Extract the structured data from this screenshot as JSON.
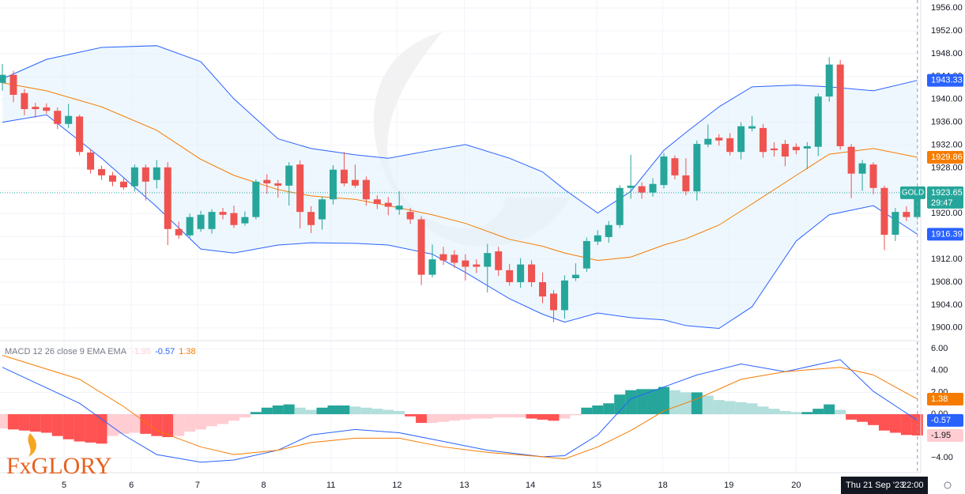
{
  "chart_data": [
    {
      "type": "candlestick",
      "symbol": "GOLD",
      "up_color": "#26a69a",
      "down_color": "#ef5350",
      "xlim": [
        -0.215,
        83.3
      ],
      "ylim": [
        1897.9,
        1957.4
      ],
      "xticks": [
        {
          "value": 5.6,
          "label": "5"
        },
        {
          "value": 11.7,
          "label": "6"
        },
        {
          "value": 17.7,
          "label": "7"
        },
        {
          "value": 23.7,
          "label": "8"
        },
        {
          "value": 29.8,
          "label": "11"
        },
        {
          "value": 35.8,
          "label": "12"
        },
        {
          "value": 41.9,
          "label": "13"
        },
        {
          "value": 47.9,
          "label": "14"
        },
        {
          "value": 53.9,
          "label": "15"
        },
        {
          "value": 59.9,
          "label": "18"
        },
        {
          "value": 65.9,
          "label": "19"
        },
        {
          "value": 72.0,
          "label": "20"
        }
      ],
      "yticks": [
        {
          "value": 1900,
          "label": "1900.00"
        },
        {
          "value": 1904,
          "label": "1904.00"
        },
        {
          "value": 1908,
          "label": "1908.00"
        },
        {
          "value": 1912,
          "label": "1912.00"
        },
        {
          "value": 1916,
          "label": "1916.00"
        },
        {
          "value": 1920,
          "label": "1920.00"
        },
        {
          "value": 1924,
          "label": "1924.00"
        },
        {
          "value": 1928,
          "label": "1928.00"
        },
        {
          "value": 1932,
          "label": "1932.00"
        },
        {
          "value": 1936,
          "label": "1936.00"
        },
        {
          "value": 1940,
          "label": "1940.00"
        },
        {
          "value": 1944,
          "label": "1944.00"
        },
        {
          "value": 1948,
          "label": "1948.00"
        },
        {
          "value": 1952,
          "label": "1952.00"
        },
        {
          "value": 1956,
          "label": "1956.00"
        }
      ],
      "open": [
        1942.9,
        1944.3,
        1941.1,
        1938.7,
        1938.6,
        1938.0,
        1935.7,
        1937,
        1930.7,
        1927.8,
        1926.7,
        1925.6,
        1924.8,
        1928.1,
        1925.9,
        1928.1,
        1917.3,
        1916.2,
        1917.3,
        1917.3,
        1920.3,
        1920.1,
        1918.3,
        1919.4,
        1925.9,
        1925.3,
        1924.9,
        1928.6,
        1920.3,
        1919,
        1922.5,
        1927.7,
        1925.9,
        1925.9,
        1922.5,
        1921.9,
        1920.7,
        1920.3,
        1919,
        1909.3,
        1912.9,
        1912.8,
        1911.8,
        1911.1,
        1910.7,
        1913.4,
        1910.1,
        1908,
        1911.1,
        1908,
        1906,
        1903.1,
        1908.7,
        1910.4,
        1915.1,
        1915.9,
        1918,
        1924.5,
        1924.8,
        1923.7,
        1925.0,
        1929.7,
        1926.7,
        1923.9,
        1932.1,
        1933.3,
        1933.2,
        1930.8,
        1934.9,
        1935,
        1931.4,
        1932.2,
        1931.7,
        1931.4,
        1931.7,
        1940.5,
        1946.1,
        1931.7,
        1927,
        1928.6,
        1924.5,
        1916.3,
        1920.3,
        1919.4
      ],
      "high": [
        1946.2,
        1945,
        1941.8,
        1939.4,
        1939.3,
        1938.6,
        1939.2,
        1937.3,
        1931.3,
        1928.4,
        1927.3,
        1926.2,
        1928.6,
        1928.6,
        1929.4,
        1929,
        1918.6,
        1920,
        1920.5,
        1920.8,
        1921,
        1921.4,
        1920.4,
        1926,
        1926.9,
        1925.9,
        1929,
        1929.3,
        1921.3,
        1923,
        1928.5,
        1930.8,
        1928.6,
        1926.5,
        1923.2,
        1922.9,
        1923.9,
        1921,
        1919.5,
        1914.6,
        1914.2,
        1913.6,
        1912.9,
        1912,
        1914.7,
        1914.2,
        1911.2,
        1912.2,
        1911.8,
        1909.7,
        1906.6,
        1909.2,
        1911.3,
        1915.8,
        1917.1,
        1918.7,
        1925,
        1930.3,
        1925.5,
        1926.2,
        1930.6,
        1930.2,
        1929.7,
        1932.8,
        1935.6,
        1933.9,
        1934.1,
        1936,
        1937.1,
        1935.7,
        1932.5,
        1932.9,
        1932.3,
        1932.5,
        1941,
        1947.4,
        1946.9,
        1932.2,
        1929.4,
        1929,
        1924.9,
        1921,
        1921.3,
        1923.9
      ],
      "low": [
        1941.5,
        1939.5,
        1937.2,
        1936.8,
        1937.5,
        1934.8,
        1935,
        1930.2,
        1927,
        1925.9,
        1924.8,
        1924.2,
        1923.9,
        1922.3,
        1924.4,
        1914.5,
        1915.6,
        1915.8,
        1916.8,
        1916.5,
        1919,
        1917.5,
        1917.9,
        1919,
        1923.5,
        1922.8,
        1921.4,
        1917.4,
        1916.6,
        1917.2,
        1921.6,
        1924.8,
        1924.5,
        1921.4,
        1920.8,
        1919.7,
        1919.8,
        1918.2,
        1907.5,
        1908.8,
        1911,
        1910.5,
        1908.3,
        1909.6,
        1906.2,
        1909.1,
        1907.4,
        1907,
        1907.2,
        1904.3,
        1901,
        1901.6,
        1908.2,
        1909.8,
        1914.5,
        1914.9,
        1917.5,
        1922.6,
        1922.6,
        1923,
        1924.4,
        1926,
        1923.2,
        1922.3,
        1931.6,
        1931.9,
        1930.2,
        1929.5,
        1934.4,
        1929.8,
        1930,
        1928.3,
        1930.4,
        1927.8,
        1930.1,
        1939.6,
        1931.2,
        1922.7,
        1924,
        1923.4,
        1913.6,
        1915.2,
        1918.7,
        1919
      ],
      "close": [
        1944.3,
        1940.8,
        1938.3,
        1938.3,
        1938.0,
        1935.7,
        1937.1,
        1930.8,
        1927.7,
        1926.7,
        1925.6,
        1924.6,
        1928.1,
        1925.6,
        1928.1,
        1917.3,
        1916.2,
        1919.4,
        1919.8,
        1920.3,
        1919.8,
        1918,
        1919.4,
        1925.6,
        1925.3,
        1924.9,
        1928.4,
        1920.3,
        1918,
        1922.5,
        1927.7,
        1925.3,
        1924.9,
        1922.5,
        1921.7,
        1921.2,
        1921.4,
        1919,
        1909.3,
        1912,
        1911.8,
        1911.4,
        1910.7,
        1910.7,
        1913.1,
        1910.1,
        1908,
        1911.1,
        1908,
        1905.5,
        1903.1,
        1908.3,
        1909.3,
        1915.2,
        1916.2,
        1918,
        1924.5,
        1924.9,
        1923.7,
        1925.2,
        1930,
        1926.7,
        1923.9,
        1932.2,
        1933.1,
        1932.8,
        1930.8,
        1935.3,
        1935.3,
        1930.8,
        1931.1,
        1930,
        1931.1,
        1931.8,
        1940.5,
        1946.1,
        1931.8,
        1927,
        1928.8,
        1924.5,
        1916.3,
        1920.3,
        1919.4,
        1923.65
      ],
      "countdown": "29:47",
      "bands": {
        "x": [
          0,
          4,
          9,
          14,
          18,
          21,
          25,
          28,
          32,
          35,
          39,
          42,
          46,
          49,
          51,
          54,
          57,
          60,
          62,
          65,
          68,
          72,
          75,
          79,
          83
        ],
        "upper": [
          1943.6,
          1947.0,
          1949.1,
          1949.4,
          1946.6,
          1940.1,
          1933.1,
          1931.4,
          1930.3,
          1929.7,
          1931.1,
          1932.1,
          1929.7,
          1927.3,
          1924.2,
          1920.1,
          1923.9,
          1931.1,
          1934.2,
          1938.7,
          1942.2,
          1942.5,
          1942.2,
          1941.5,
          1943.33
        ],
        "middle": [
          1942.9,
          1941.5,
          1938.7,
          1934.6,
          1929.5,
          1926.7,
          1924.2,
          1923.1,
          1922.5,
          1921.4,
          1919.8,
          1918.3,
          1915.5,
          1914.3,
          1913.1,
          1911.8,
          1912.4,
          1914.5,
          1915.6,
          1918,
          1921.7,
          1926.7,
          1930.4,
          1931.4,
          1929.86
        ],
        "lower": [
          1936,
          1937.3,
          1929.7,
          1921.2,
          1913.8,
          1913.1,
          1914.5,
          1914.9,
          1914.8,
          1914.5,
          1912.9,
          1909.7,
          1905.1,
          1902.4,
          1901,
          1902.6,
          1901.8,
          1901.4,
          1900.4,
          1899.9,
          1903.7,
          1915.2,
          1919.8,
          1921.4,
          1916.39
        ],
        "band_color": "#2962ff",
        "middle_color": "#f57c00",
        "fill": "#e3f2fd"
      }
    },
    {
      "type": "macd",
      "title": "MACD 12 26 close 9 EMA EMA",
      "xlim": [
        -0.215,
        83.3
      ],
      "ylim": [
        -5.36,
        6.67
      ],
      "yticks": [
        {
          "value": -4,
          "label": "−4.00"
        },
        {
          "value": 0,
          "label": "0.00"
        },
        {
          "value": 2,
          "label": "2.00"
        },
        {
          "value": 4,
          "label": "4.00"
        },
        {
          "value": 6,
          "label": "6.00"
        }
      ],
      "histogram": [
        -1.3,
        -1.4,
        -1.5,
        -1.6,
        -1.7,
        -2.0,
        -2.3,
        -2.5,
        -2.6,
        -2.7,
        -2.0,
        -1.8,
        -1.7,
        -1.8,
        -2.0,
        -2.1,
        -2.0,
        -1.6,
        -1.4,
        -1.1,
        -0.9,
        -0.6,
        -0.3,
        0.2,
        0.6,
        0.8,
        0.9,
        0.6,
        0.4,
        0.6,
        0.8,
        0.8,
        0.7,
        0.6,
        0.5,
        0.4,
        0.3,
        -0.2,
        -0.8,
        -0.8,
        -0.7,
        -0.6,
        -0.5,
        -0.4,
        -0.4,
        -0.3,
        -0.3,
        -0.3,
        -0.4,
        -0.5,
        -0.6,
        -0.4,
        -0.1,
        0.6,
        0.8,
        1.0,
        1.8,
        2.2,
        2.3,
        2.3,
        2.5,
        2.2,
        2.0,
        2.0,
        1.7,
        1.3,
        1.2,
        1.1,
        1.0,
        0.7,
        0.5,
        0.3,
        0.2,
        0.2,
        0.5,
        0.9,
        0.4,
        -0.5,
        -0.7,
        -1.0,
        -1.5,
        -1.7,
        -1.9,
        -1.95
      ],
      "hist_colors": {
        "grow_above": "#26a69a",
        "fall_above": "#b2dfdb",
        "grow_below": "#ff5252",
        "fall_below": "#ffcdd2"
      },
      "x": [
        0,
        7,
        11,
        14,
        18,
        21,
        25,
        28,
        32,
        36,
        40,
        44,
        49,
        51,
        54,
        57,
        60,
        63,
        67,
        71,
        76,
        79,
        83
      ],
      "series": [
        {
          "color": "#2962ff",
          "values": [
            4.3,
            1.0,
            -1.9,
            -3.7,
            -4.4,
            -4.2,
            -3.3,
            -1.9,
            -1.4,
            -1.7,
            -2.5,
            -3.3,
            -3.9,
            -3.8,
            -1.9,
            1.4,
            2.5,
            3.6,
            4.6,
            3.9,
            5.0,
            2.1,
            -0.57
          ]
        },
        {
          "color": "#f57c00",
          "values": [
            5.4,
            3.2,
            0.7,
            -1.5,
            -3.0,
            -3.7,
            -3.3,
            -2.6,
            -2.2,
            -2.2,
            -3.0,
            -3.5,
            -3.9,
            -4.1,
            -3.0,
            -1.5,
            0.3,
            1.4,
            3.2,
            3.9,
            4.3,
            3.6,
            1.38
          ]
        }
      ]
    }
  ],
  "crosshair_date": "Thu 21 Sep '23",
  "crosshair_time": "22:00",
  "logo": "FxGLORY"
}
